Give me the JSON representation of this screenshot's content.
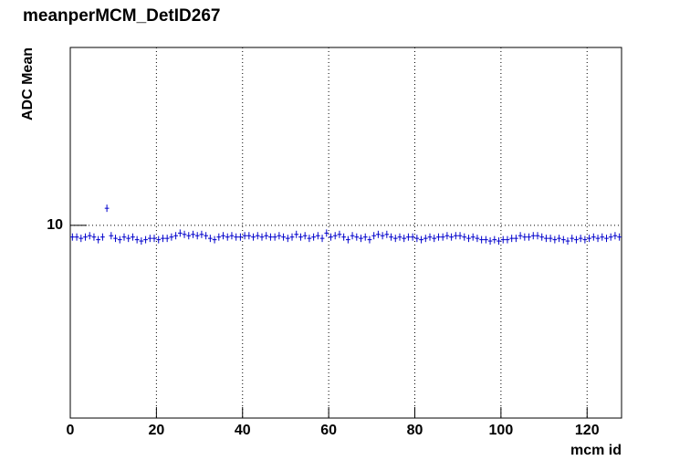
{
  "chart_data": {
    "type": "histogram",
    "title": "meanperMCM_DetID267",
    "x_label": "mcm id",
    "y_label": "ADC Mean",
    "bins": [
      0,
      1,
      2,
      3,
      4,
      5,
      6,
      7,
      8,
      9,
      10,
      11,
      12,
      13,
      14,
      15,
      16,
      17,
      18,
      19,
      20,
      21,
      22,
      23,
      24,
      25,
      26,
      27,
      28,
      29,
      30,
      31,
      32,
      33,
      34,
      35,
      36,
      37,
      38,
      39,
      40,
      41,
      42,
      43,
      44,
      45,
      46,
      47,
      48,
      49,
      50,
      51,
      52,
      53,
      54,
      55,
      56,
      57,
      58,
      59,
      60,
      61,
      62,
      63,
      64,
      65,
      66,
      67,
      68,
      69,
      70,
      71,
      72,
      73,
      74,
      75,
      76,
      77,
      78,
      79,
      80,
      81,
      82,
      83,
      84,
      85,
      86,
      87,
      88,
      89,
      90,
      91,
      92,
      93,
      94,
      95,
      96,
      97,
      98,
      99,
      100,
      101,
      102,
      103,
      104,
      105,
      106,
      107,
      108,
      109,
      110,
      111,
      112,
      113,
      114,
      115,
      116,
      117,
      118,
      119,
      120,
      121,
      122,
      123,
      124,
      125,
      126,
      127,
      128
    ],
    "values": [
      9.55,
      9.55,
      9.5,
      9.55,
      9.6,
      9.55,
      9.45,
      9.55,
      10.7,
      9.6,
      9.5,
      9.45,
      9.55,
      9.5,
      9.55,
      9.45,
      9.4,
      9.45,
      9.5,
      9.5,
      9.45,
      9.5,
      9.5,
      9.55,
      9.6,
      9.7,
      9.65,
      9.6,
      9.65,
      9.6,
      9.65,
      9.6,
      9.5,
      9.45,
      9.55,
      9.6,
      9.55,
      9.6,
      9.55,
      9.55,
      9.6,
      9.6,
      9.55,
      9.6,
      9.55,
      9.6,
      9.55,
      9.55,
      9.6,
      9.55,
      9.5,
      9.55,
      9.65,
      9.55,
      9.6,
      9.5,
      9.55,
      9.6,
      9.5,
      9.7,
      9.55,
      9.6,
      9.65,
      9.55,
      9.45,
      9.6,
      9.55,
      9.5,
      9.55,
      9.45,
      9.6,
      9.65,
      9.6,
      9.65,
      9.55,
      9.5,
      9.55,
      9.5,
      9.55,
      9.55,
      9.5,
      9.45,
      9.5,
      9.55,
      9.5,
      9.55,
      9.55,
      9.6,
      9.55,
      9.6,
      9.6,
      9.55,
      9.5,
      9.55,
      9.5,
      9.45,
      9.45,
      9.4,
      9.45,
      9.4,
      9.45,
      9.45,
      9.5,
      9.5,
      9.6,
      9.55,
      9.55,
      9.6,
      9.6,
      9.55,
      9.5,
      9.5,
      9.45,
      9.5,
      9.45,
      9.4,
      9.5,
      9.45,
      9.5,
      9.45,
      9.5,
      9.55,
      9.5,
      9.55,
      9.5,
      9.55,
      9.6,
      9.55
    ],
    "color": "#0000cc",
    "xlim": [
      0,
      128
    ],
    "xticks": [
      0,
      20,
      40,
      60,
      80,
      100,
      120
    ],
    "ylim": [
      4.67,
      20.2
    ],
    "yticks": [
      10
    ],
    "ylog": true,
    "grid": true
  }
}
